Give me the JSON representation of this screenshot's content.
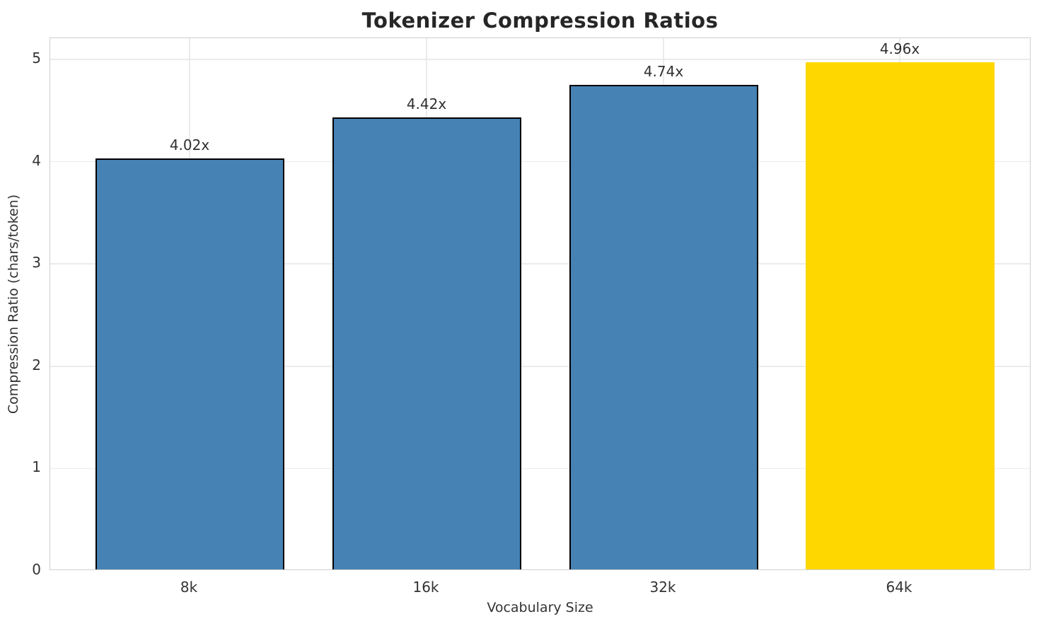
{
  "chart_data": {
    "type": "bar",
    "title": "Tokenizer Compression Ratios",
    "xlabel": "Vocabulary Size",
    "ylabel": "Compression Ratio (chars/token)",
    "categories": [
      "8k",
      "16k",
      "32k",
      "64k"
    ],
    "values": [
      4.02,
      4.42,
      4.74,
      4.96
    ],
    "bar_labels": [
      "4.02x",
      "4.42x",
      "4.74x",
      "4.96x"
    ],
    "bar_fill_colors": [
      "#4682b4",
      "#4682b4",
      "#4682b4",
      "#ffd700"
    ],
    "bar_edge_colors": [
      "#000000",
      "#000000",
      "#000000",
      "none"
    ],
    "highlight_index": 3,
    "yticks": [
      0,
      1,
      2,
      3,
      4,
      5
    ],
    "ylim": [
      0,
      5.2
    ],
    "grid": true,
    "legend_position": "none",
    "colors": {
      "bar_default": "#4682b4",
      "bar_highlight": "#ffd700",
      "bar_edge": "#000000",
      "grid": "#ebebeb",
      "spine": "#cfcfcf",
      "text": "#333333",
      "title": "#262626"
    }
  }
}
